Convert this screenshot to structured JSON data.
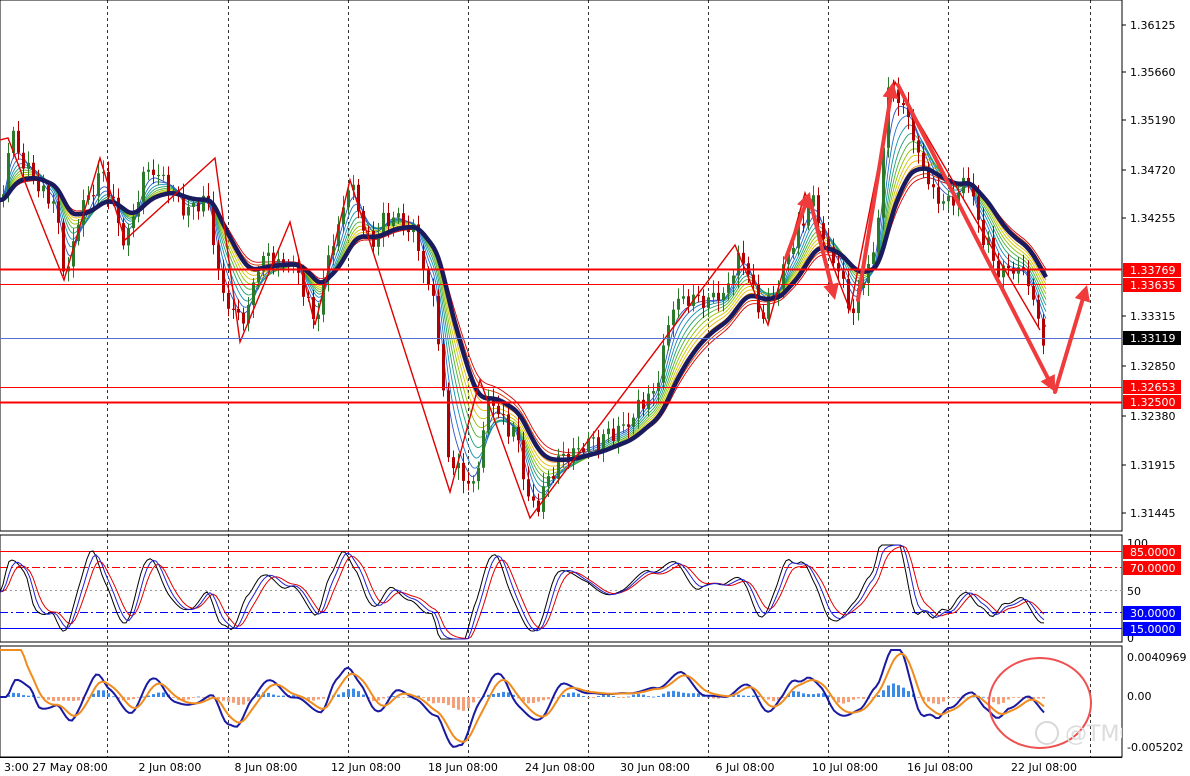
{
  "price_axis": {
    "labels": [
      "1.36125",
      "1.35660",
      "1.35190",
      "1.34720",
      "1.34255",
      "1.33315",
      "1.32850",
      "1.32380",
      "1.31915",
      "1.31445"
    ],
    "current_price": "1.33119",
    "levels": [
      {
        "label": "1.33769",
        "color": "#ff0000"
      },
      {
        "label": "1.33635",
        "color": "#ff0000"
      },
      {
        "label": "1.32653",
        "color": "#ff0000"
      },
      {
        "label": "1.32500",
        "color": "#ff0000"
      }
    ]
  },
  "oscillator": {
    "labels": [
      "100",
      "50",
      "0"
    ],
    "levels": [
      "85.0000",
      "70.0000",
      "30.0000",
      "15.0000"
    ],
    "level_colors": [
      "#ff0000",
      "#ff0000",
      "#0000ff",
      "#0000ff"
    ]
  },
  "macd": {
    "labels": [
      "0.0040969",
      "0.00",
      "-0.005202"
    ]
  },
  "time_axis": {
    "labels": [
      "3:00",
      "27 May 08:00",
      "2 Jun 08:00",
      "8 Jun 08:00",
      "12 Jun 08:00",
      "18 Jun 08:00",
      "24 Jun 08:00",
      "30 Jun 08:00",
      "6 Jul 08:00",
      "10 Jul 08:00",
      "16 Jul 08:00",
      "22 Jul 08:00"
    ]
  },
  "watermark": "@TMGM",
  "colors": {
    "background": "#ffffff",
    "ma_thick": "#1a1a5e",
    "annotation": "#ef3b3b",
    "level_line": "#ff0000",
    "current_line": "#5a6fd6",
    "macd_positive": "#3a8ae8",
    "macd_negative": "#f4a07a"
  }
}
